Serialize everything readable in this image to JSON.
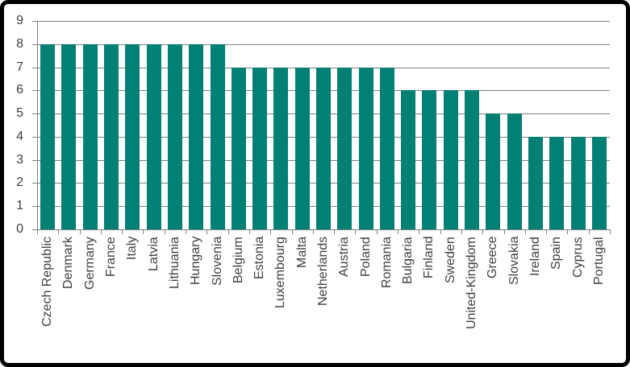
{
  "chart_data": {
    "type": "bar",
    "title": "",
    "xlabel": "",
    "ylabel": "",
    "categories": [
      "Czech Republic",
      "Denmark",
      "Germany",
      "France",
      "Italy",
      "Latvia",
      "Lithuania",
      "Hungary",
      "Slovenia",
      "Belgium",
      "Estonia",
      "Luxembourg",
      "Malta",
      "Netherlands",
      "Austria",
      "Poland",
      "Romania",
      "Bulgaria",
      "Finland",
      "Sweden",
      "United-Kingdom",
      "Greece",
      "Slovakia",
      "Ireland",
      "Spain",
      "Cyprus",
      "Portugal"
    ],
    "values": [
      8,
      8,
      8,
      8,
      8,
      8,
      8,
      8,
      8,
      7,
      7,
      7,
      7,
      7,
      7,
      7,
      7,
      6,
      6,
      6,
      6,
      5,
      5,
      4,
      4,
      4,
      4
    ],
    "ylim": [
      0,
      9
    ],
    "ytick_step": 1,
    "yticks": [
      0,
      1,
      2,
      3,
      4,
      5,
      6,
      7,
      8,
      9
    ],
    "grid": true,
    "legend": false,
    "colors": {
      "bar": "#028073",
      "gridline": "#808080",
      "axis_line": "#808080",
      "axis_text": "#404040",
      "frame_border": "#000000",
      "background": "#ffffff"
    }
  }
}
